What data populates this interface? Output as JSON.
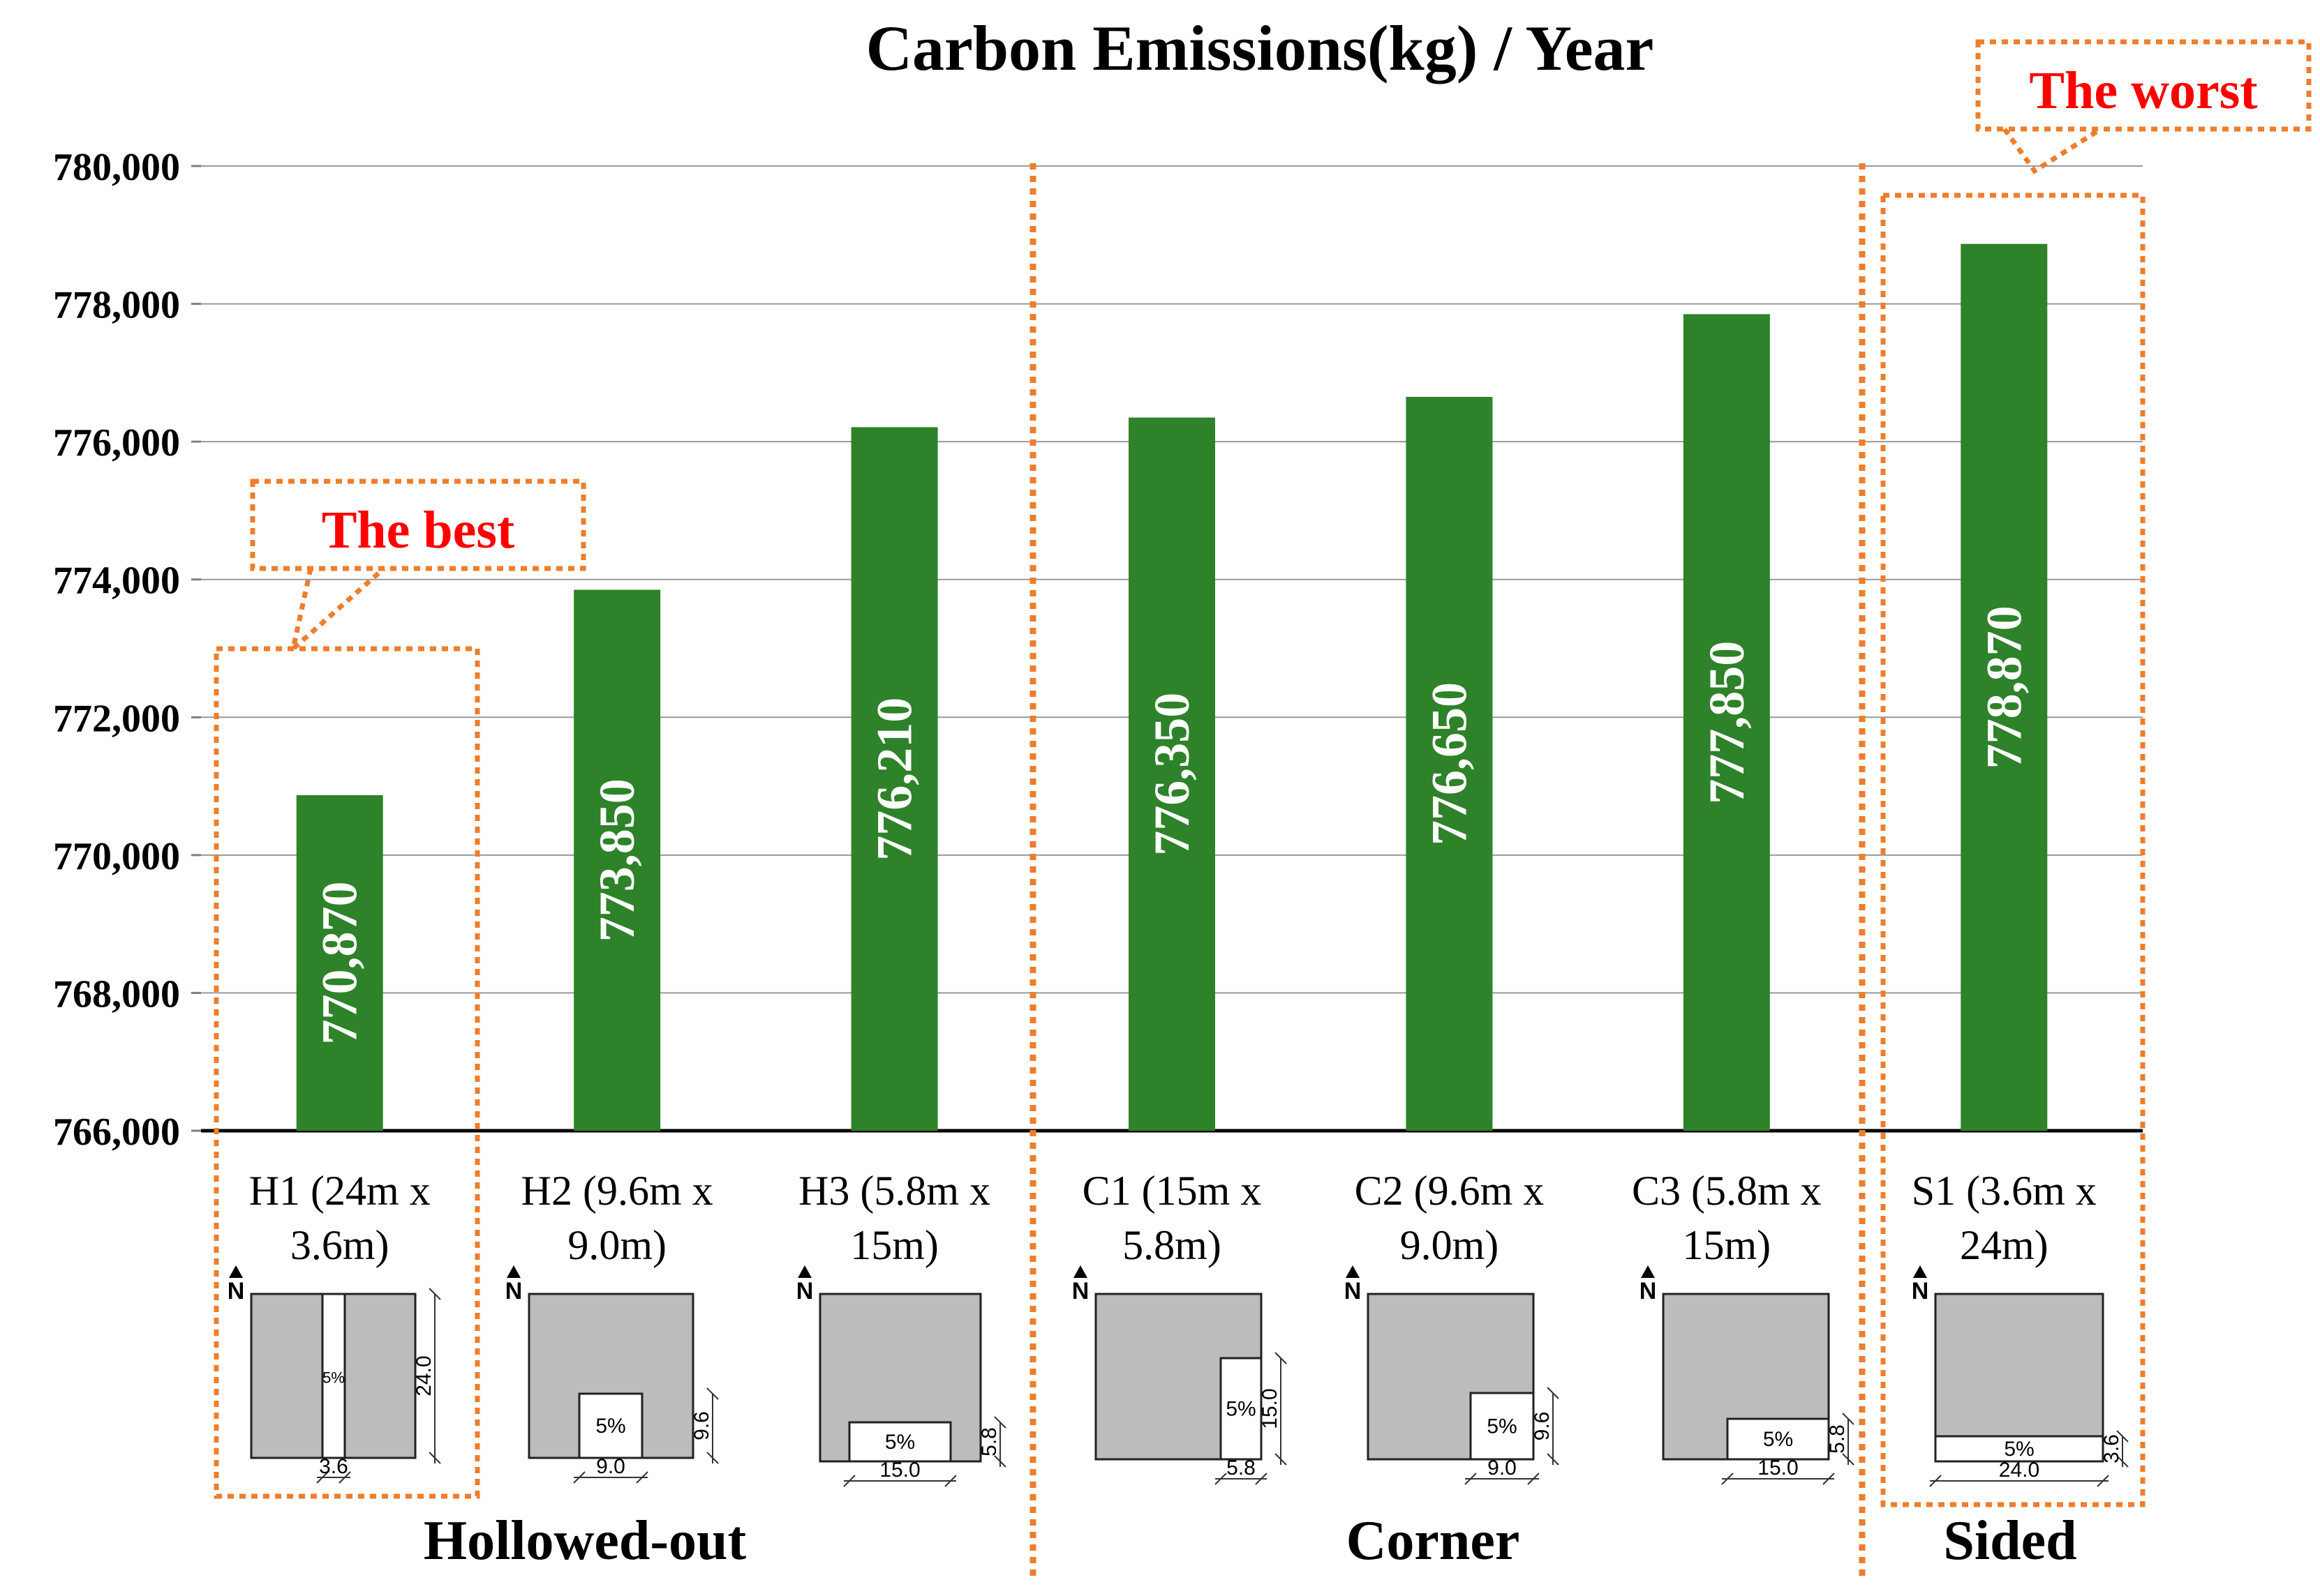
{
  "chart_data": {
    "type": "bar",
    "title": "Carbon Emissions(kg) / Year",
    "xlabel": "",
    "ylabel": "",
    "ylim": [
      766000,
      780000
    ],
    "yticks": [
      766000,
      768000,
      770000,
      772000,
      774000,
      776000,
      778000,
      780000
    ],
    "ytick_labels": [
      "766,000",
      "768,000",
      "770,000",
      "772,000",
      "774,000",
      "776,000",
      "778,000",
      "780,000"
    ],
    "grid": true,
    "bar_color": "#2e8229",
    "categories": [
      [
        "H1 (24m x",
        "3.6m)"
      ],
      [
        "H2 (9.6m x",
        "9.0m)"
      ],
      [
        "H3 (5.8m x",
        "15m)"
      ],
      [
        "C1 (15m x",
        "5.8m)"
      ],
      [
        "C2 (9.6m x",
        "9.0m)"
      ],
      [
        "C3 (5.8m x",
        "15m)"
      ],
      [
        "S1 (3.6m x",
        "24m)"
      ]
    ],
    "values": [
      770870,
      773850,
      776210,
      776350,
      776650,
      777850,
      778870
    ],
    "value_labels": [
      "770,870",
      "773,850",
      "776,210",
      "776,350",
      "776,650",
      "777,850",
      "778,870"
    ],
    "groups": [
      {
        "name": "Hollowed-out",
        "members": [
          0,
          1,
          2
        ]
      },
      {
        "name": "Corner",
        "members": [
          3,
          4,
          5
        ]
      },
      {
        "name": "Sided",
        "members": [
          6
        ]
      }
    ],
    "annotations": [
      {
        "text": "The best",
        "target": 0
      },
      {
        "text": "The worst",
        "target": 6
      }
    ],
    "annotation_color": "#ee7d2c",
    "annotation_text_color": "#ff0000"
  },
  "diagrams": [
    {
      "north": "N",
      "area": "5%",
      "dim_a": "24.0",
      "dim_b": "3.6"
    },
    {
      "north": "N",
      "area": "5%",
      "dim_a": "9.6",
      "dim_b": "9.0"
    },
    {
      "north": "N",
      "area": "5%",
      "dim_a": "5.8",
      "dim_b": "15.0"
    },
    {
      "north": "N",
      "area": "5%",
      "dim_a": "15.0",
      "dim_b": "5.8"
    },
    {
      "north": "N",
      "area": "5%",
      "dim_a": "9.6",
      "dim_b": "9.0"
    },
    {
      "north": "N",
      "area": "5%",
      "dim_a": "5.8",
      "dim_b": "15.0"
    },
    {
      "north": "N",
      "area": "5%",
      "dim_a": "3.6",
      "dim_b": "24.0"
    }
  ]
}
